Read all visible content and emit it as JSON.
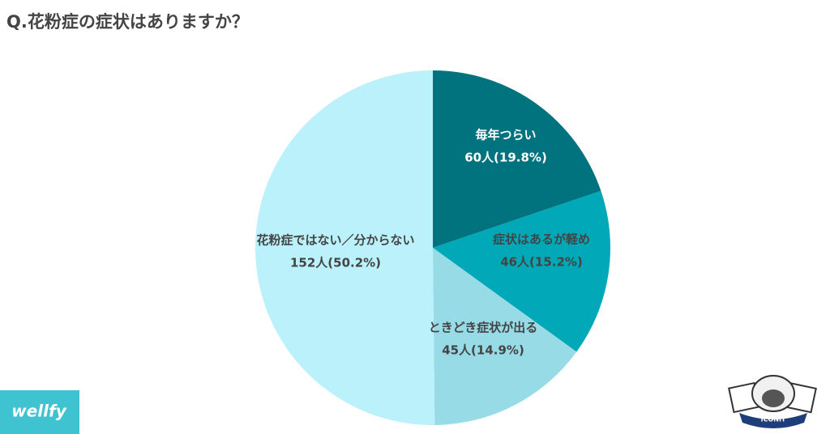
{
  "chart_data": {
    "type": "pie",
    "title": "Q.花粉症の症状はありますか？",
    "categories": [
      "毎年つらい",
      "症状はあるが軽め",
      "ときどき症状が出る",
      "花粉症ではない／分からない"
    ],
    "values": [
      60,
      46,
      45,
      152
    ],
    "value_labels": [
      "60人(19.8%)",
      "46人(15.2%)",
      "45人(14.9%)",
      "152人(50.2%)"
    ],
    "colors": [
      "#00737f",
      "#00a8b8",
      "#97dbe6",
      "#baf1fb"
    ]
  },
  "logos": {
    "left": "wellfy",
    "right": "ICONIT"
  }
}
